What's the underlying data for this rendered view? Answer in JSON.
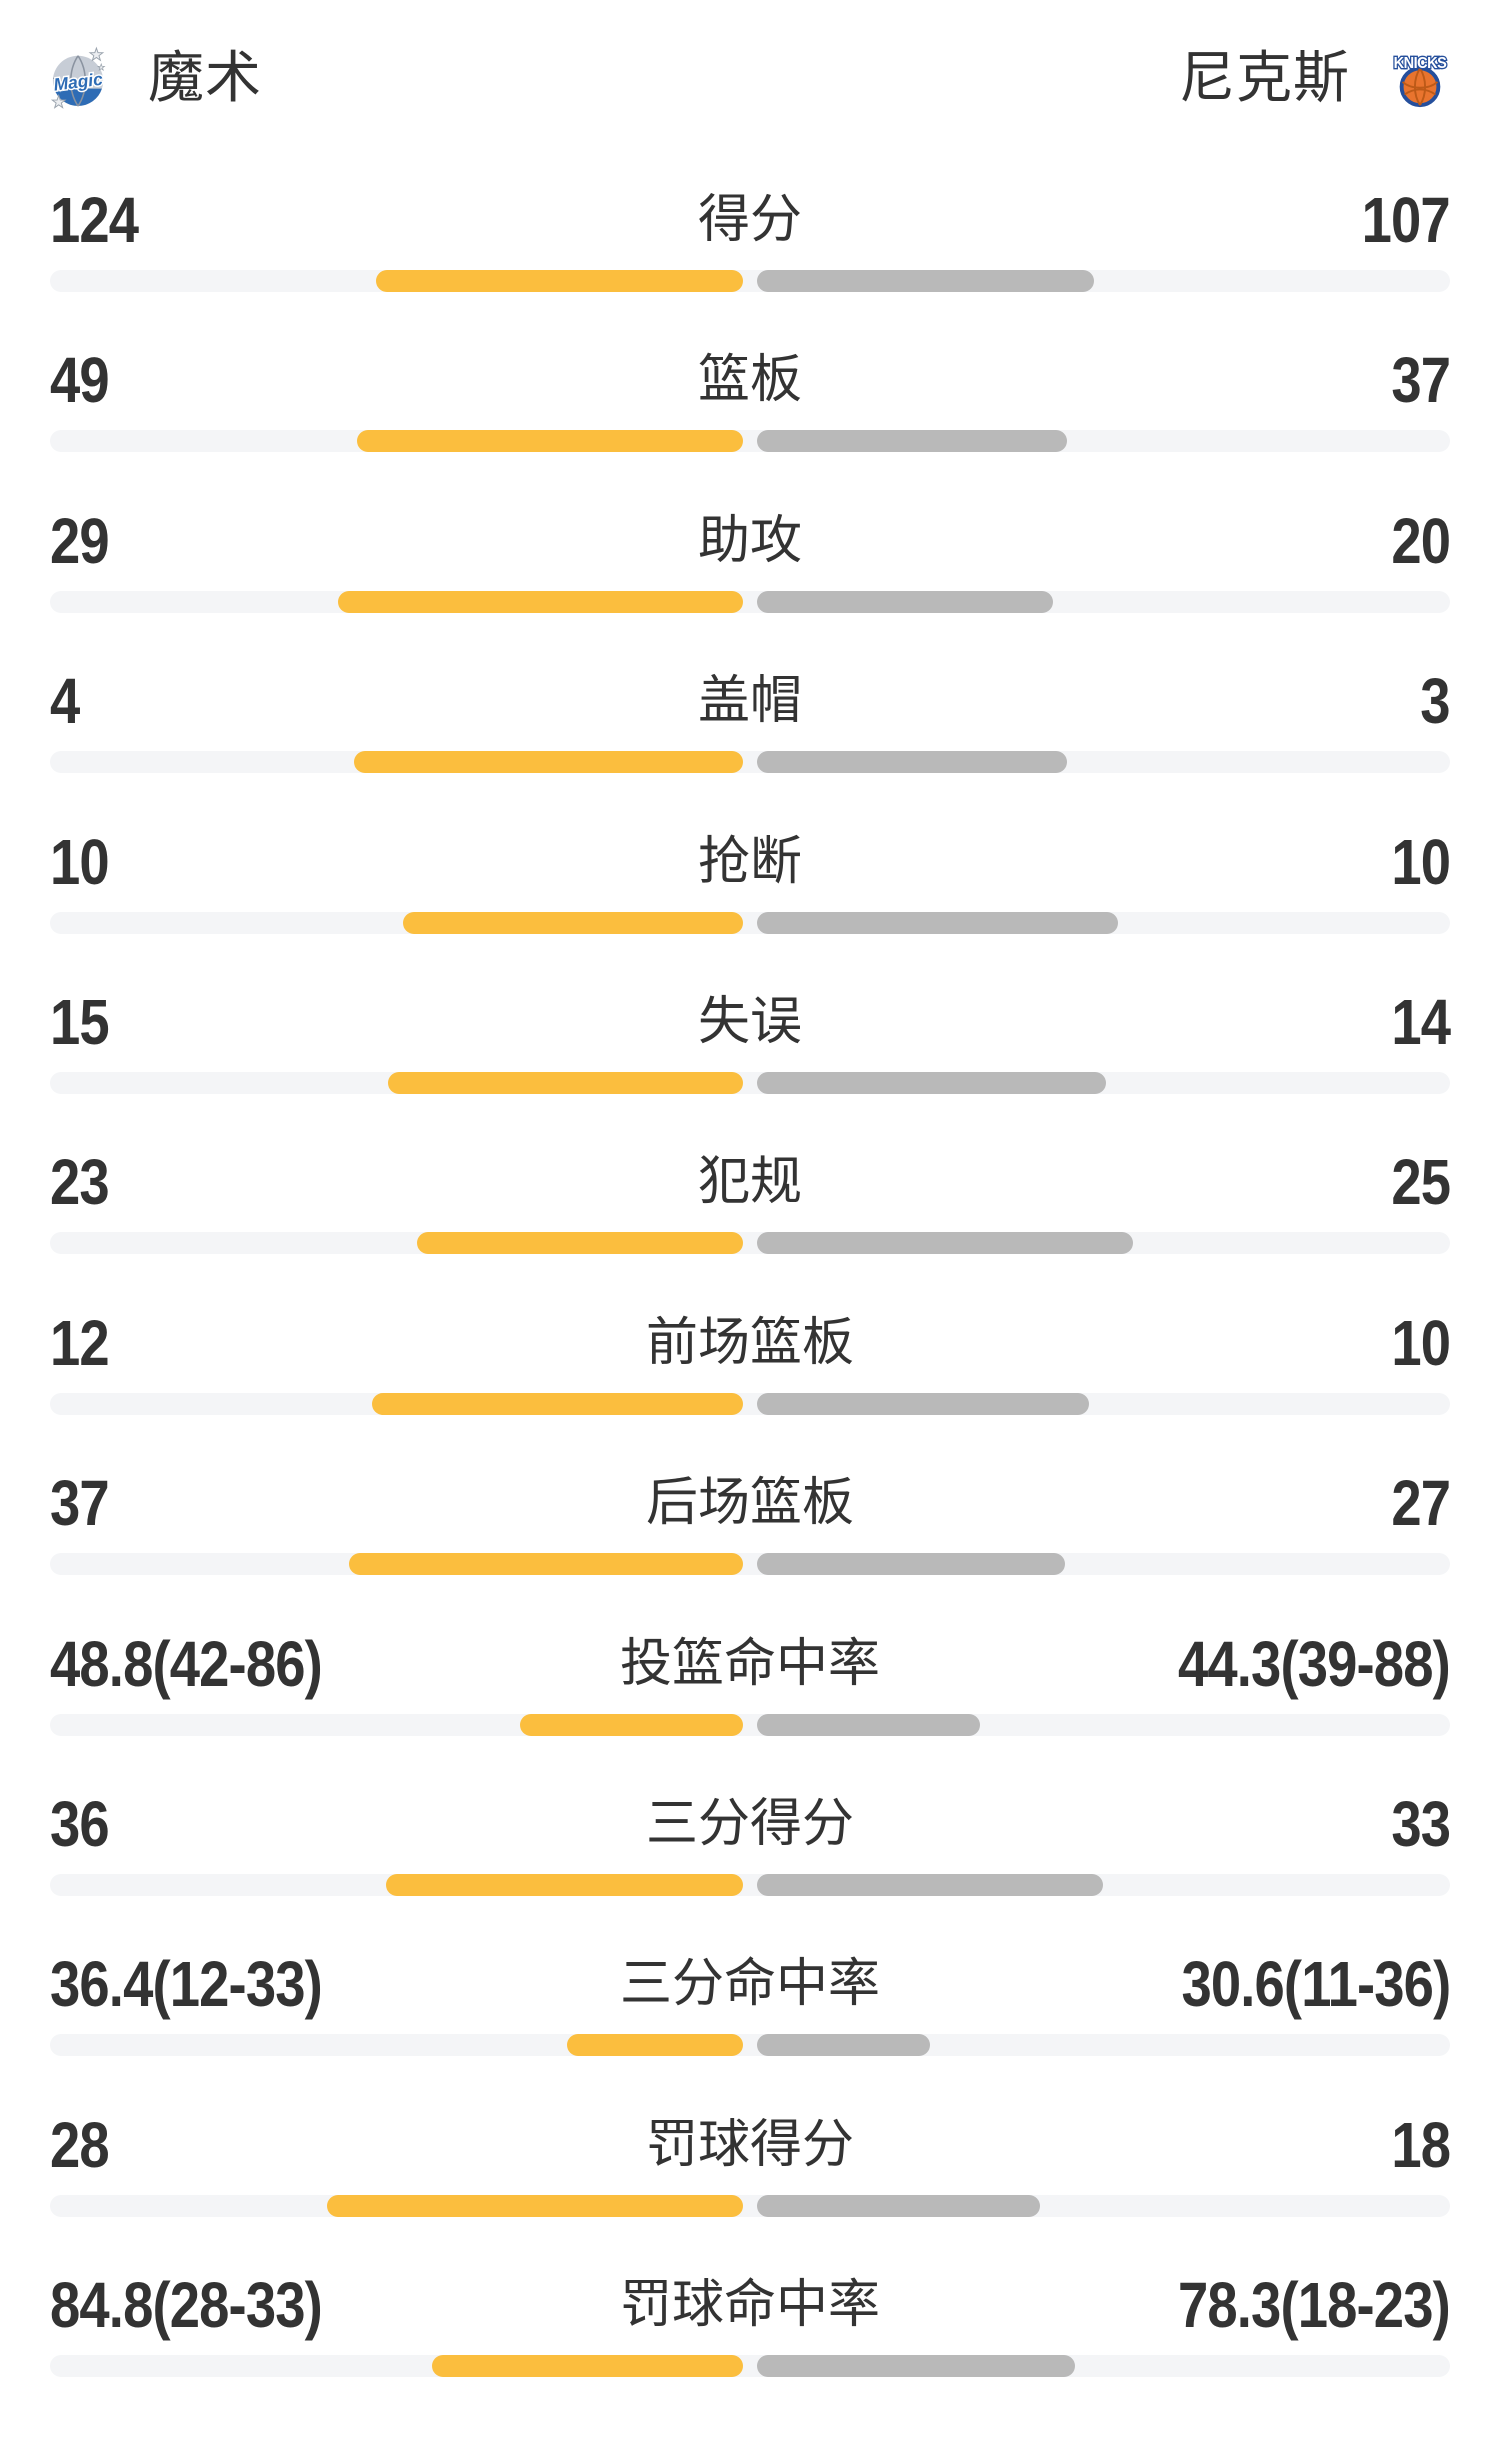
{
  "header": {
    "home": {
      "name": "魔术",
      "logo_text": "Magic"
    },
    "away": {
      "name": "尼克斯",
      "logo_text": "KNICKS"
    }
  },
  "colors": {
    "text": "#333333",
    "track": "#F4F5F7",
    "home_bar": "#FBBE3E",
    "away_bar": "#B9B9B9",
    "magic_blue": "#2E6CB5",
    "magic_silver": "#C7CDD6",
    "knicks_blue": "#254F9C",
    "knicks_orange": "#E9742E"
  },
  "stats": [
    {
      "label": "得分",
      "home": "124",
      "away": "107",
      "home_bar_pct": 53.0,
      "away_bar_pct": 48.6
    },
    {
      "label": "篮板",
      "home": "49",
      "away": "37",
      "home_bar_pct": 55.7,
      "away_bar_pct": 44.7
    },
    {
      "label": "助攻",
      "home": "29",
      "away": "20",
      "home_bar_pct": 58.4,
      "away_bar_pct": 42.7
    },
    {
      "label": "盖帽",
      "home": "4",
      "away": "3",
      "home_bar_pct": 56.1,
      "away_bar_pct": 44.7
    },
    {
      "label": "抢断",
      "home": "10",
      "away": "10",
      "home_bar_pct": 49.1,
      "away_bar_pct": 52.1
    },
    {
      "label": "失误",
      "home": "15",
      "away": "14",
      "home_bar_pct": 51.2,
      "away_bar_pct": 50.4
    },
    {
      "label": "犯规",
      "home": "23",
      "away": "25",
      "home_bar_pct": 47.0,
      "away_bar_pct": 54.3
    },
    {
      "label": "前场篮板",
      "home": "12",
      "away": "10",
      "home_bar_pct": 53.5,
      "away_bar_pct": 47.9
    },
    {
      "label": "后场篮板",
      "home": "37",
      "away": "27",
      "home_bar_pct": 56.9,
      "away_bar_pct": 44.4
    },
    {
      "label": "投篮命中率",
      "home": "48.8(42-86)",
      "away": "44.3(39-88)",
      "home_bar_pct": 32.2,
      "away_bar_pct": 32.2
    },
    {
      "label": "三分得分",
      "home": "36",
      "away": "33",
      "home_bar_pct": 51.5,
      "away_bar_pct": 49.9
    },
    {
      "label": "三分命中率",
      "home": "36.4(12-33)",
      "away": "30.6(11-36)",
      "home_bar_pct": 25.4,
      "away_bar_pct": 25.0
    },
    {
      "label": "罚球得分",
      "home": "28",
      "away": "18",
      "home_bar_pct": 60.0,
      "away_bar_pct": 40.8
    },
    {
      "label": "罚球命中率",
      "home": "84.8(28-33)",
      "away": "78.3(18-23)",
      "home_bar_pct": 44.9,
      "away_bar_pct": 45.9
    }
  ]
}
